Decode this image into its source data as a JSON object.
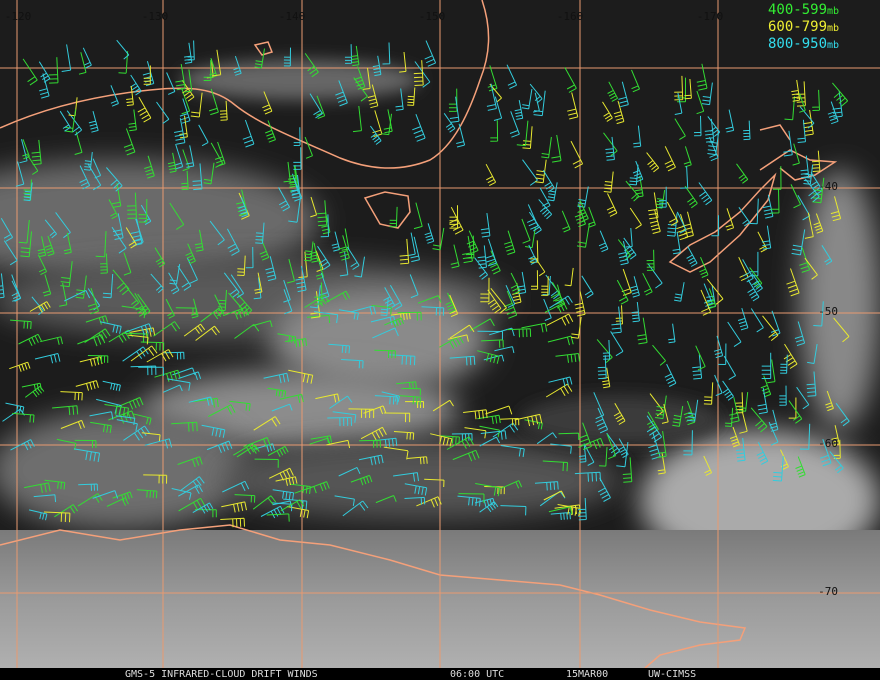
{
  "map": {
    "longitude_labels": [
      "-120",
      "-130",
      "-140",
      "-150",
      "-160",
      "-170"
    ],
    "latitude_labels": [
      "-40",
      "-50",
      "-60",
      "-70"
    ],
    "legend": [
      {
        "range": "400-599",
        "unit": "mb"
      },
      {
        "range": "600-799",
        "unit": "mb"
      },
      {
        "range": "800-950",
        "unit": "mb"
      }
    ],
    "caption": {
      "product": "GMS-5 INFRARED-CLOUD DRIFT WINDS",
      "time": "06:00 UTC",
      "date": "15MAR00",
      "source": "UW-CIMSS"
    }
  }
}
